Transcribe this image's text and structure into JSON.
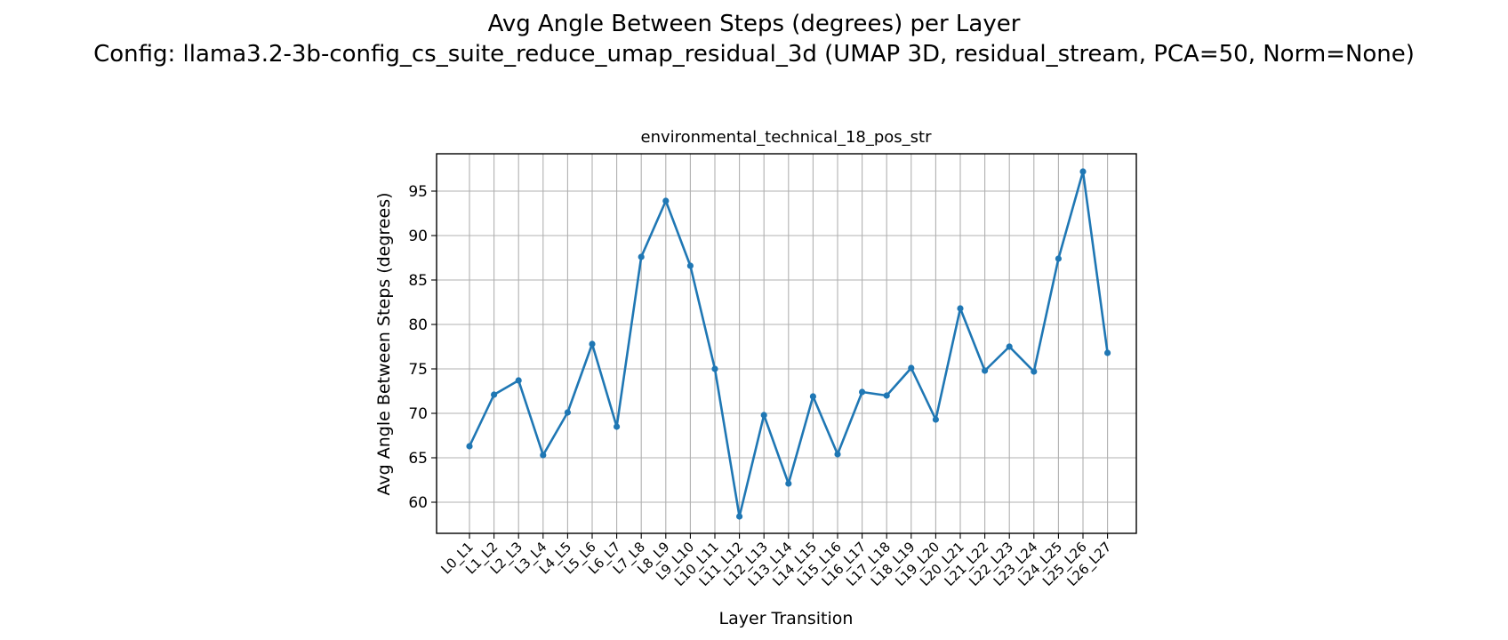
{
  "suptitle": {
    "line1": "Avg Angle Between Steps (degrees) per Layer",
    "line2": "Config: llama3.2-3b-config_cs_suite_reduce_umap_residual_3d (UMAP 3D, residual_stream, PCA=50, Norm=None)"
  },
  "chart_data": {
    "type": "line",
    "title": "environmental_technical_18_pos_str",
    "xlabel": "Layer Transition",
    "ylabel": "Avg Angle Between Steps (degrees)",
    "ylim": [
      56.5,
      99.2
    ],
    "yticks": [
      60,
      65,
      70,
      75,
      80,
      85,
      90,
      95
    ],
    "grid": true,
    "color": "#1f77b4",
    "categories": [
      "L0_L1",
      "L1_L2",
      "L2_L3",
      "L3_L4",
      "L4_L5",
      "L5_L6",
      "L6_L7",
      "L7_L8",
      "L8_L9",
      "L9_L10",
      "L10_L11",
      "L11_L12",
      "L12_L13",
      "L13_L14",
      "L14_L15",
      "L15_L16",
      "L16_L17",
      "L17_L18",
      "L18_L19",
      "L19_L20",
      "L20_L21",
      "L21_L22",
      "L22_L23",
      "L23_L24",
      "L24_L25",
      "L25_L26",
      "L26_L27"
    ],
    "values": [
      66.3,
      72.1,
      73.7,
      65.3,
      70.1,
      77.8,
      68.5,
      87.6,
      93.9,
      86.6,
      75.0,
      58.4,
      69.8,
      62.1,
      71.9,
      65.4,
      72.4,
      72.0,
      75.1,
      69.3,
      81.8,
      74.8,
      77.5,
      74.7,
      87.4,
      97.2,
      76.8
    ]
  }
}
